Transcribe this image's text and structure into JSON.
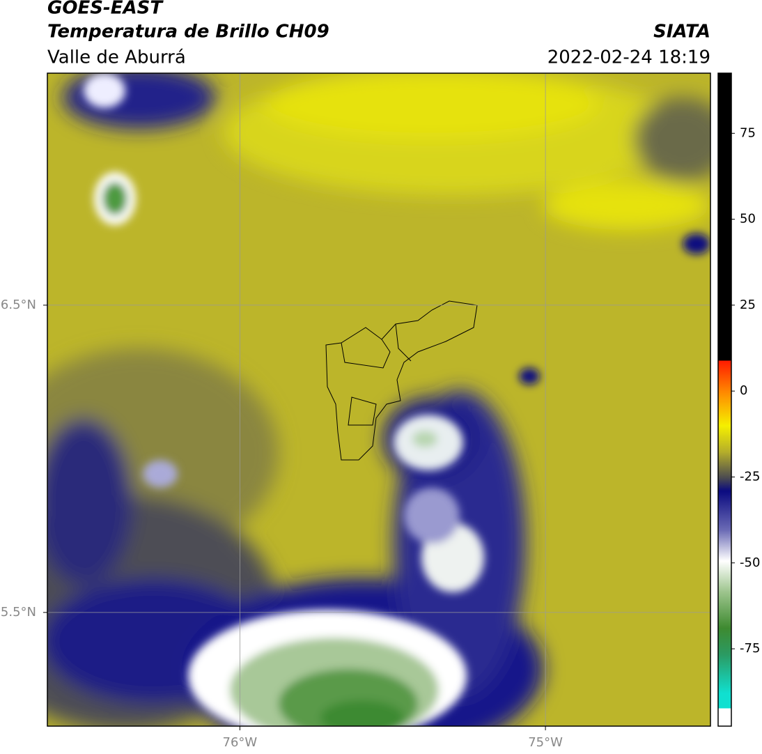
{
  "header": {
    "title": "GOES-EAST",
    "subtitle": "Temperatura de Brillo CH09",
    "region": "Valle de Aburrá",
    "source": "SIATA",
    "datetime": "2022-02-24 18:19"
  },
  "map": {
    "xlim": [
      -76.63,
      -74.46
    ],
    "ylim": [
      5.13,
      7.255
    ],
    "xticks": [
      {
        "value": -76,
        "label": "76°W"
      },
      {
        "value": -75,
        "label": "75°W"
      }
    ],
    "yticks": [
      {
        "value": 6.5,
        "label": "6.5°N"
      },
      {
        "value": 5.5,
        "label": "5.5°N"
      }
    ],
    "grid": true
  },
  "colorbar": {
    "lim": [
      -97.5,
      92.5
    ],
    "ticks": [
      75,
      50,
      25,
      0,
      -25,
      -50,
      -75
    ]
  }
}
